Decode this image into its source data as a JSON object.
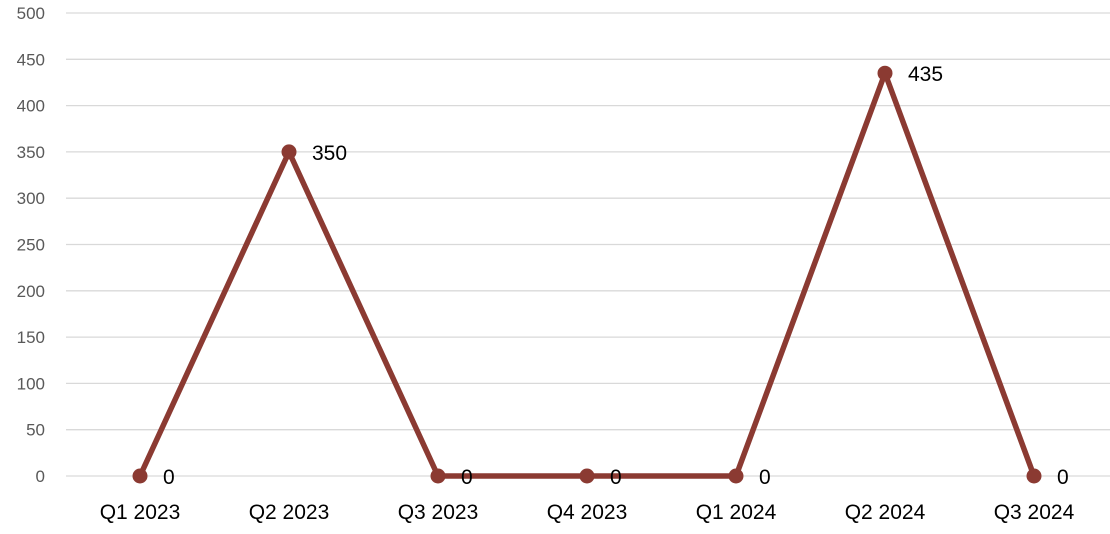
{
  "chart_data": {
    "type": "line",
    "title": "",
    "xlabel": "",
    "ylabel": "",
    "categories": [
      "Q1 2023",
      "Q2 2023",
      "Q3 2023",
      "Q4 2023",
      "Q1 2024",
      "Q2 2024",
      "Q3 2024"
    ],
    "series": [
      {
        "values": [
          0,
          350,
          0,
          0,
          0,
          435,
          0
        ],
        "color": "#8b3a32"
      }
    ],
    "y_ticks": [
      0,
      50,
      100,
      150,
      200,
      250,
      300,
      350,
      400,
      450,
      500
    ],
    "ylim": [
      0,
      500
    ],
    "grid": true,
    "legend": "none",
    "data_labels": true,
    "markers": "circle"
  }
}
